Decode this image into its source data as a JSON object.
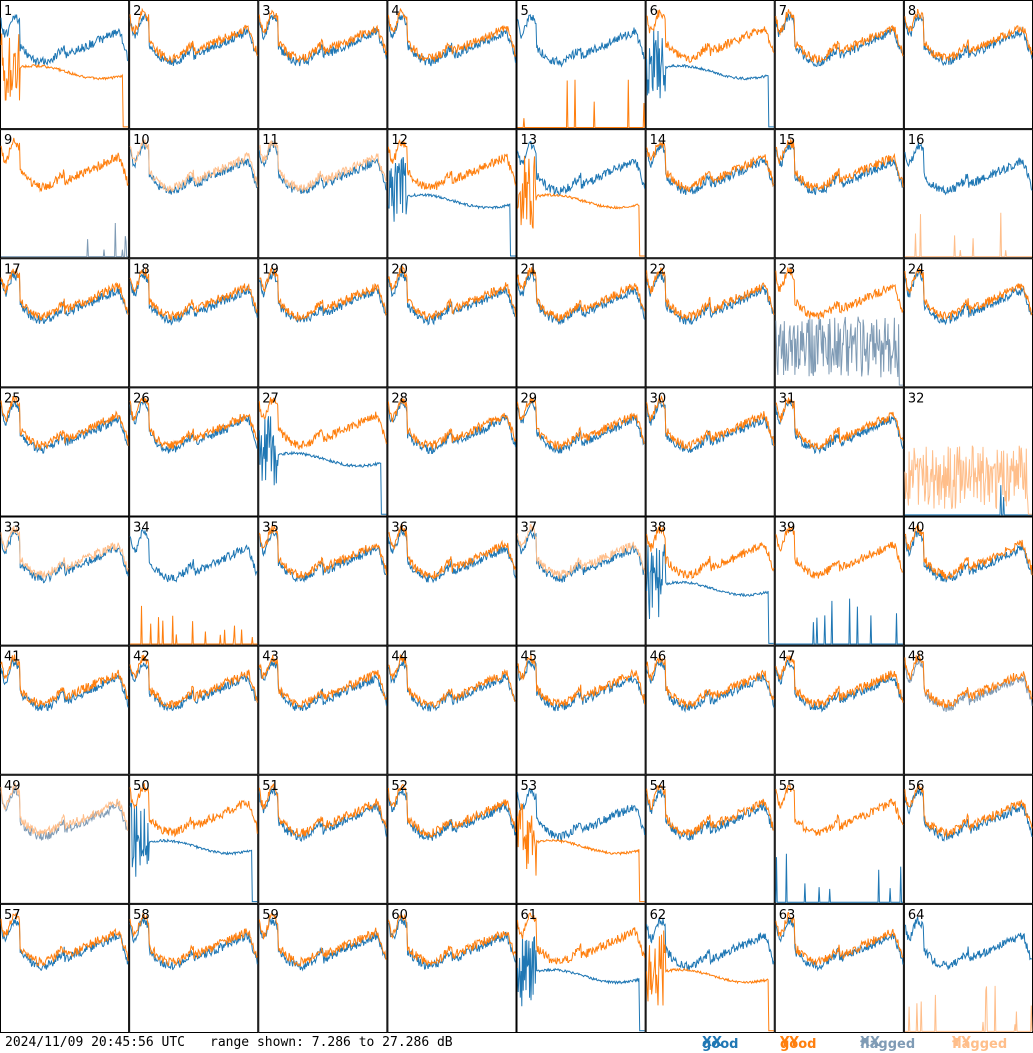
{
  "footer": {
    "timestamp": "2024/11/09 20:45:56 UTC",
    "range_label": "range shown: 7.286 to 27.286 dB"
  },
  "legend": [
    {
      "prefix": "good ",
      "suffix": "XX",
      "color": "#1f77b4"
    },
    {
      "prefix": "good ",
      "suffix": "YY",
      "color": "#ff7f0e"
    },
    {
      "prefix": "flagged ",
      "suffix": "XX",
      "color": "#7f9bb5"
    },
    {
      "prefix": "flagged ",
      "suffix": "YY",
      "color": "#ffbe8a"
    }
  ],
  "colors": {
    "good_xx": "#1f77b4",
    "good_yy": "#ff7f0e",
    "flagged_xx": "#7f9bb5",
    "flagged_yy": "#ffbe8a"
  },
  "chart_data": {
    "type": "line",
    "layout": "8x8 small multiples",
    "ylim": [
      7.286,
      27.286
    ],
    "yunit": "dB",
    "series_names": [
      "good XX",
      "good YY",
      "flagged XX",
      "flagged YY"
    ],
    "tiles": [
      {
        "label": "1",
        "xx": "good",
        "yy": "good",
        "xx_shape": "normal",
        "yy_shape": "low"
      },
      {
        "label": "2",
        "xx": "good",
        "yy": "good",
        "xx_shape": "normal",
        "yy_shape": "normal"
      },
      {
        "label": "3",
        "xx": "good",
        "yy": "good",
        "xx_shape": "normal",
        "yy_shape": "normal"
      },
      {
        "label": "4",
        "xx": "good",
        "yy": "good",
        "xx_shape": "normal",
        "yy_shape": "normal"
      },
      {
        "label": "5",
        "xx": "good",
        "yy": "good",
        "xx_shape": "normal",
        "yy_shape": "dead"
      },
      {
        "label": "6",
        "xx": "good",
        "yy": "good",
        "xx_shape": "low",
        "yy_shape": "normal"
      },
      {
        "label": "7",
        "xx": "good",
        "yy": "good",
        "xx_shape": "normal",
        "yy_shape": "normal"
      },
      {
        "label": "8",
        "xx": "good",
        "yy": "good",
        "xx_shape": "normal",
        "yy_shape": "normal"
      },
      {
        "label": "9",
        "xx": "flagged",
        "yy": "good",
        "xx_shape": "dead",
        "yy_shape": "normal"
      },
      {
        "label": "10",
        "xx": "good",
        "yy": "flagged",
        "xx_shape": "normal",
        "yy_shape": "normal"
      },
      {
        "label": "11",
        "xx": "good",
        "yy": "flagged",
        "xx_shape": "normal",
        "yy_shape": "normal"
      },
      {
        "label": "12",
        "xx": "good",
        "yy": "good",
        "xx_shape": "low",
        "yy_shape": "normal"
      },
      {
        "label": "13",
        "xx": "good",
        "yy": "good",
        "xx_shape": "normal",
        "yy_shape": "low"
      },
      {
        "label": "14",
        "xx": "good",
        "yy": "good",
        "xx_shape": "normal",
        "yy_shape": "normal"
      },
      {
        "label": "15",
        "xx": "good",
        "yy": "good",
        "xx_shape": "normal",
        "yy_shape": "normal"
      },
      {
        "label": "16",
        "xx": "good",
        "yy": "flagged",
        "xx_shape": "normal",
        "yy_shape": "dead"
      },
      {
        "label": "17",
        "xx": "good",
        "yy": "good",
        "xx_shape": "normal",
        "yy_shape": "normal"
      },
      {
        "label": "18",
        "xx": "good",
        "yy": "good",
        "xx_shape": "normal",
        "yy_shape": "normal"
      },
      {
        "label": "19",
        "xx": "good",
        "yy": "good",
        "xx_shape": "normal",
        "yy_shape": "normal"
      },
      {
        "label": "20",
        "xx": "good",
        "yy": "good",
        "xx_shape": "normal",
        "yy_shape": "normal"
      },
      {
        "label": "21",
        "xx": "good",
        "yy": "good",
        "xx_shape": "normal",
        "yy_shape": "normal"
      },
      {
        "label": "22",
        "xx": "good",
        "yy": "good",
        "xx_shape": "normal",
        "yy_shape": "normal"
      },
      {
        "label": "23",
        "xx": "flagged",
        "yy": "good",
        "xx_shape": "noisy",
        "yy_shape": "normal"
      },
      {
        "label": "24",
        "xx": "good",
        "yy": "good",
        "xx_shape": "normal",
        "yy_shape": "normal"
      },
      {
        "label": "25",
        "xx": "good",
        "yy": "good",
        "xx_shape": "normal",
        "yy_shape": "normal"
      },
      {
        "label": "26",
        "xx": "good",
        "yy": "good",
        "xx_shape": "normal",
        "yy_shape": "normal"
      },
      {
        "label": "27",
        "xx": "good",
        "yy": "good",
        "xx_shape": "low",
        "yy_shape": "normal"
      },
      {
        "label": "28",
        "xx": "good",
        "yy": "good",
        "xx_shape": "normal",
        "yy_shape": "normal"
      },
      {
        "label": "29",
        "xx": "good",
        "yy": "good",
        "xx_shape": "normal",
        "yy_shape": "normal"
      },
      {
        "label": "30",
        "xx": "good",
        "yy": "good",
        "xx_shape": "normal",
        "yy_shape": "normal"
      },
      {
        "label": "31",
        "xx": "good",
        "yy": "good",
        "xx_shape": "normal",
        "yy_shape": "normal"
      },
      {
        "label": "32",
        "xx": "good",
        "yy": "flagged",
        "xx_shape": "dead",
        "yy_shape": "noisy"
      },
      {
        "label": "33",
        "xx": "good",
        "yy": "flagged",
        "xx_shape": "normal",
        "yy_shape": "normal"
      },
      {
        "label": "34",
        "xx": "good",
        "yy": "good",
        "xx_shape": "normal",
        "yy_shape": "dead"
      },
      {
        "label": "35",
        "xx": "good",
        "yy": "good",
        "xx_shape": "normal",
        "yy_shape": "normal"
      },
      {
        "label": "36",
        "xx": "good",
        "yy": "good",
        "xx_shape": "normal",
        "yy_shape": "normal"
      },
      {
        "label": "37",
        "xx": "good",
        "yy": "flagged",
        "xx_shape": "normal",
        "yy_shape": "normal"
      },
      {
        "label": "38",
        "xx": "good",
        "yy": "good",
        "xx_shape": "low",
        "yy_shape": "normal"
      },
      {
        "label": "39",
        "xx": "good",
        "yy": "good",
        "xx_shape": "dead",
        "yy_shape": "normal"
      },
      {
        "label": "40",
        "xx": "good",
        "yy": "good",
        "xx_shape": "normal",
        "yy_shape": "normal"
      },
      {
        "label": "41",
        "xx": "good",
        "yy": "good",
        "xx_shape": "normal",
        "yy_shape": "normal"
      },
      {
        "label": "42",
        "xx": "good",
        "yy": "good",
        "xx_shape": "normal",
        "yy_shape": "normal"
      },
      {
        "label": "43",
        "xx": "good",
        "yy": "good",
        "xx_shape": "normal",
        "yy_shape": "normal"
      },
      {
        "label": "44",
        "xx": "good",
        "yy": "good",
        "xx_shape": "normal",
        "yy_shape": "normal"
      },
      {
        "label": "45",
        "xx": "good",
        "yy": "good",
        "xx_shape": "normal",
        "yy_shape": "normal"
      },
      {
        "label": "46",
        "xx": "good",
        "yy": "good",
        "xx_shape": "normal",
        "yy_shape": "normal"
      },
      {
        "label": "47",
        "xx": "good",
        "yy": "good",
        "xx_shape": "normal",
        "yy_shape": "normal"
      },
      {
        "label": "48",
        "xx": "flagged",
        "yy": "good",
        "xx_shape": "normal",
        "yy_shape": "normal"
      },
      {
        "label": "49",
        "xx": "flagged",
        "yy": "flagged",
        "xx_shape": "normal",
        "yy_shape": "normal"
      },
      {
        "label": "50",
        "xx": "good",
        "yy": "good",
        "xx_shape": "low",
        "yy_shape": "normal"
      },
      {
        "label": "51",
        "xx": "good",
        "yy": "good",
        "xx_shape": "normal",
        "yy_shape": "normal"
      },
      {
        "label": "52",
        "xx": "good",
        "yy": "good",
        "xx_shape": "normal",
        "yy_shape": "normal"
      },
      {
        "label": "53",
        "xx": "good",
        "yy": "good",
        "xx_shape": "normal",
        "yy_shape": "low"
      },
      {
        "label": "54",
        "xx": "good",
        "yy": "good",
        "xx_shape": "normal",
        "yy_shape": "normal"
      },
      {
        "label": "55",
        "xx": "good",
        "yy": "good",
        "xx_shape": "dead",
        "yy_shape": "normal"
      },
      {
        "label": "56",
        "xx": "good",
        "yy": "good",
        "xx_shape": "normal",
        "yy_shape": "normal"
      },
      {
        "label": "57",
        "xx": "good",
        "yy": "good",
        "xx_shape": "normal",
        "yy_shape": "normal"
      },
      {
        "label": "58",
        "xx": "good",
        "yy": "good",
        "xx_shape": "normal",
        "yy_shape": "normal"
      },
      {
        "label": "59",
        "xx": "good",
        "yy": "good",
        "xx_shape": "normal",
        "yy_shape": "normal"
      },
      {
        "label": "60",
        "xx": "good",
        "yy": "good",
        "xx_shape": "normal",
        "yy_shape": "normal"
      },
      {
        "label": "61",
        "xx": "good",
        "yy": "good",
        "xx_shape": "low",
        "yy_shape": "normal"
      },
      {
        "label": "62",
        "xx": "good",
        "yy": "good",
        "xx_shape": "normal",
        "yy_shape": "low"
      },
      {
        "label": "63",
        "xx": "good",
        "yy": "good",
        "xx_shape": "normal",
        "yy_shape": "normal"
      },
      {
        "label": "64",
        "xx": "good",
        "yy": "flagged",
        "xx_shape": "normal",
        "yy_shape": "dead"
      }
    ]
  }
}
